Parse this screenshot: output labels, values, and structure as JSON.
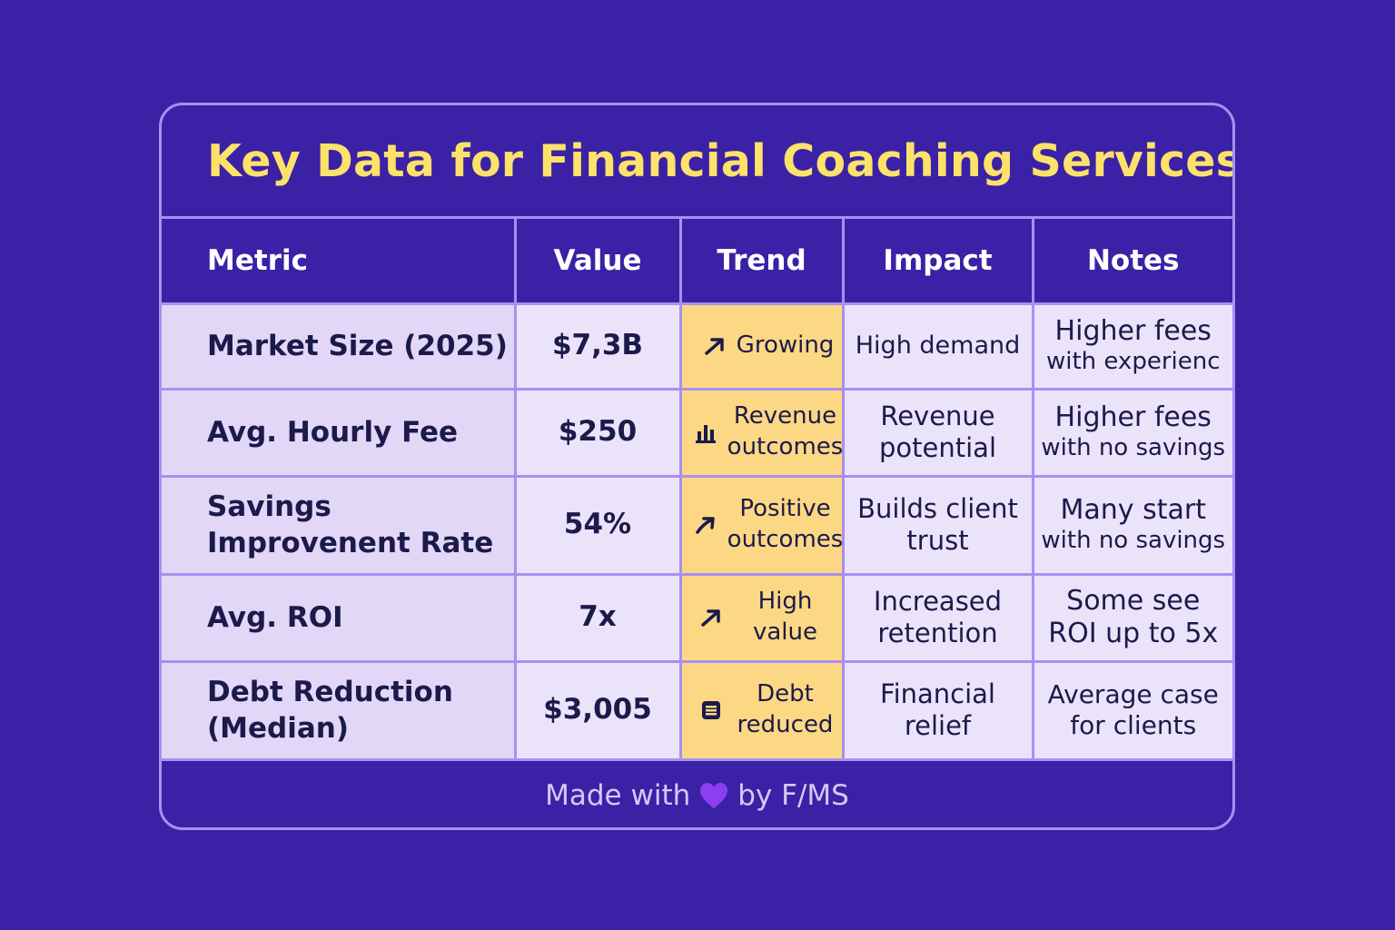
{
  "title": "Key Data for Financial Coaching Services",
  "columns": [
    "Metric",
    "Value",
    "Trend",
    "Impact",
    "Notes"
  ],
  "rows": [
    {
      "metric": "Market Size (2025)",
      "value": "$7,3B",
      "trend_icon": "arrow-up-right-icon",
      "trend": "Growing",
      "impact": "High demand",
      "notes_main": "Higher fees",
      "notes_sub": "with experienc"
    },
    {
      "metric": "Avg. Hourly Fee",
      "value": "$250",
      "trend_icon": "bar-chart-icon",
      "trend": "Revenue outcomes",
      "impact": "Revenue potential",
      "notes_main": "Higher fees",
      "notes_sub": "with no savings"
    },
    {
      "metric": "Savings Improvenent Rate",
      "value": "54%",
      "trend_icon": "arrow-up-right-icon",
      "trend": "Positive outcomes",
      "impact": "Builds client trust",
      "notes_main": "Many start",
      "notes_sub": "with no savings"
    },
    {
      "metric": "Avg. ROI",
      "value": "7x",
      "trend_icon": "arrow-up-right-icon",
      "trend": "High value",
      "impact": "Increased retention",
      "notes_main": "Some see",
      "notes_sub": "ROI up to 5x"
    },
    {
      "metric": "Debt Reduction (Median)",
      "value": "$3,005",
      "trend_icon": "document-icon",
      "trend": "Debt reduced",
      "impact": "Financial relief",
      "notes_main": "Average case",
      "notes_sub": "for clients"
    }
  ],
  "footer": {
    "prefix": "Made with",
    "icon": "purple-heart-icon",
    "suffix": "by F/MS"
  },
  "colors": {
    "background": "#3b21a6",
    "title": "#fde26a",
    "border": "#a98ff0",
    "metric_cell": "#e2d7f7",
    "cell": "#ebe3fa",
    "trend_cell": "#fcd884",
    "text_dark": "#1c1a4a",
    "heart": "#8a3ff0"
  }
}
